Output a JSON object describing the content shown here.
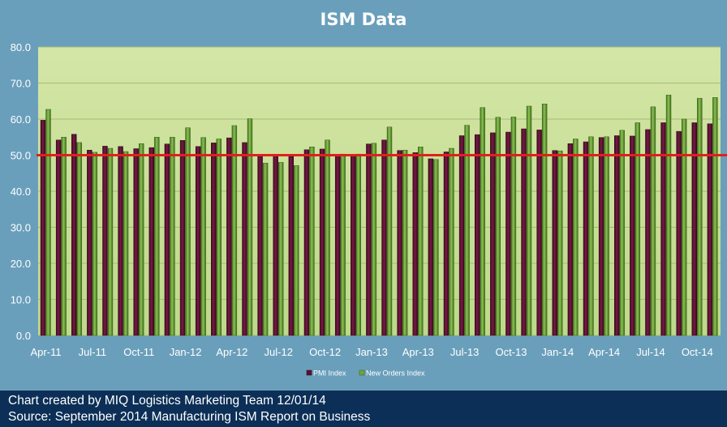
{
  "chart_data": {
    "type": "bar",
    "title": "ISM Data",
    "ylim": [
      0,
      80
    ],
    "yticks": [
      "0.0",
      "10.0",
      "20.0",
      "30.0",
      "40.0",
      "50.0",
      "60.0",
      "70.0",
      "80.0"
    ],
    "grid": true,
    "legend_position": "bottom",
    "reference_line": {
      "value": 50,
      "color": "#e0201c"
    },
    "categories": [
      "Apr-11",
      "May-11",
      "Jun-11",
      "Jul-11",
      "Aug-11",
      "Sep-11",
      "Oct-11",
      "Nov-11",
      "Dec-11",
      "Jan-12",
      "Feb-12",
      "Mar-12",
      "Apr-12",
      "May-12",
      "Jun-12",
      "Jul-12",
      "Aug-12",
      "Sep-12",
      "Oct-12",
      "Nov-12",
      "Dec-12",
      "Jan-13",
      "Feb-13",
      "Mar-13",
      "Apr-13",
      "May-13",
      "Jun-13",
      "Jul-13",
      "Aug-13",
      "Sep-13",
      "Oct-13",
      "Nov-13",
      "Dec-13",
      "Jan-14",
      "Feb-14",
      "Mar-14",
      "Apr-14",
      "May-14",
      "Jun-14",
      "Jul-14",
      "Aug-14",
      "Sep-14",
      "Oct-14",
      "Nov-14"
    ],
    "xtick_labels": [
      "Apr-11",
      "Jul-11",
      "Oct-11",
      "Jan-12",
      "Apr-12",
      "Jul-12",
      "Oct-12",
      "Jan-13",
      "Apr-13",
      "Jul-13",
      "Oct-13",
      "Jan-14",
      "Apr-14",
      "Jul-14",
      "Oct-14"
    ],
    "series": [
      {
        "name": "PMI Index",
        "color": "#5c0f33",
        "values": [
          59.7,
          54.2,
          55.8,
          51.4,
          52.5,
          52.4,
          51.8,
          52.1,
          53.1,
          54.1,
          52.4,
          53.4,
          54.8,
          53.5,
          49.7,
          49.8,
          49.6,
          51.5,
          51.7,
          49.9,
          50.2,
          53.1,
          54.2,
          51.3,
          50.7,
          49.0,
          50.9,
          55.4,
          55.7,
          56.2,
          56.4,
          57.3,
          57.0,
          51.3,
          53.2,
          53.7,
          54.9,
          55.4,
          55.3,
          57.1,
          59.0,
          56.6,
          59.0,
          58.7
        ]
      },
      {
        "name": "New Orders Index",
        "color": "#6ea53a",
        "values": [
          62.7,
          55.0,
          53.5,
          50.8,
          51.9,
          51.0,
          53.2,
          55.0,
          55.0,
          57.6,
          54.9,
          54.5,
          58.2,
          60.1,
          47.8,
          48.0,
          47.1,
          52.3,
          54.2,
          50.3,
          50.3,
          53.3,
          57.8,
          51.4,
          52.3,
          48.8,
          51.9,
          58.3,
          63.2,
          60.5,
          60.6,
          63.6,
          64.2,
          51.2,
          54.5,
          55.1,
          55.1,
          56.9,
          59.0,
          63.4,
          66.7,
          60.0,
          65.8,
          66.0
        ]
      }
    ]
  },
  "footer": {
    "line1": "Chart created by MIQ Logistics Marketing Team 12/01/14",
    "line2": "Source: September 2014 Manufacturing ISM Report on Business"
  }
}
